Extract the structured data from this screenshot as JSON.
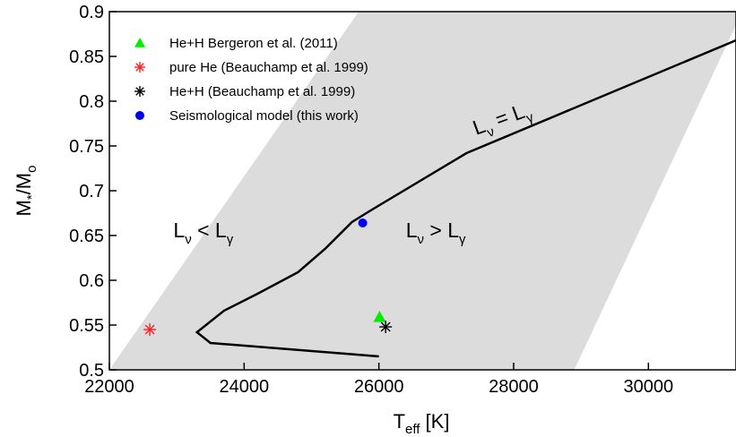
{
  "chart_data": {
    "type": "scatter",
    "xlabel": "T",
    "xlabel_sub": "eff",
    "xlabel_unit": " [K]",
    "ylabel": "M",
    "ylabel_sub1": "*",
    "ylabel_mid": "/M",
    "ylabel_sub2": "o",
    "xlim": [
      22000,
      31300
    ],
    "ylim": [
      0.5,
      0.9
    ],
    "xticks": [
      22000,
      24000,
      26000,
      28000,
      30000
    ],
    "yticks": [
      0.5,
      0.55,
      0.6,
      0.65,
      0.7,
      0.75,
      0.8,
      0.85,
      0.9
    ],
    "grid": false,
    "legend_position": "top-left",
    "instability_strip": {
      "color": "#dcdcdc",
      "polygon": [
        [
          22000,
          0.5
        ],
        [
          25700,
          0.9
        ],
        [
          31300,
          0.9
        ],
        [
          31300,
          0.885
        ],
        [
          28900,
          0.5
        ]
      ]
    },
    "boundary_line": {
      "label_main1": "L",
      "label_sub1": "ν",
      "label_op": " = ",
      "label_main2": "L",
      "label_sub2": "γ",
      "points": [
        [
          26000,
          0.515
        ],
        [
          23500,
          0.53
        ],
        [
          23300,
          0.542
        ],
        [
          23700,
          0.566
        ],
        [
          24200,
          0.585
        ],
        [
          24800,
          0.609
        ],
        [
          25200,
          0.635
        ],
        [
          25600,
          0.665
        ],
        [
          25900,
          0.679
        ],
        [
          27300,
          0.742
        ],
        [
          31300,
          0.868
        ]
      ]
    },
    "region_labels": [
      {
        "main1": "L",
        "sub1": "ν",
        "op": " < ",
        "main2": "L",
        "sub2": "γ",
        "x": 22950,
        "y": 0.648
      },
      {
        "main1": "L",
        "sub1": "ν",
        "op": " > ",
        "main2": "L",
        "sub2": "γ",
        "x": 26400,
        "y": 0.648
      }
    ],
    "series": [
      {
        "name": "He+H Bergeron et al. (2011)",
        "marker": "triangle",
        "color": "#00ee00",
        "points": [
          [
            26010,
            0.559
          ]
        ]
      },
      {
        "name": "pure He (Beauchamp et al. 1999)",
        "marker": "asterisk",
        "color": "#ff2020",
        "points": [
          [
            22600,
            0.545
          ]
        ]
      },
      {
        "name": "He+H (Beauchamp et al. 1999)",
        "marker": "asterisk",
        "color": "#000000",
        "points": [
          [
            26100,
            0.548
          ]
        ]
      },
      {
        "name": "Seismological model (this work)",
        "marker": "circle",
        "color": "#0000ee",
        "points": [
          [
            25760,
            0.664
          ]
        ]
      }
    ]
  }
}
